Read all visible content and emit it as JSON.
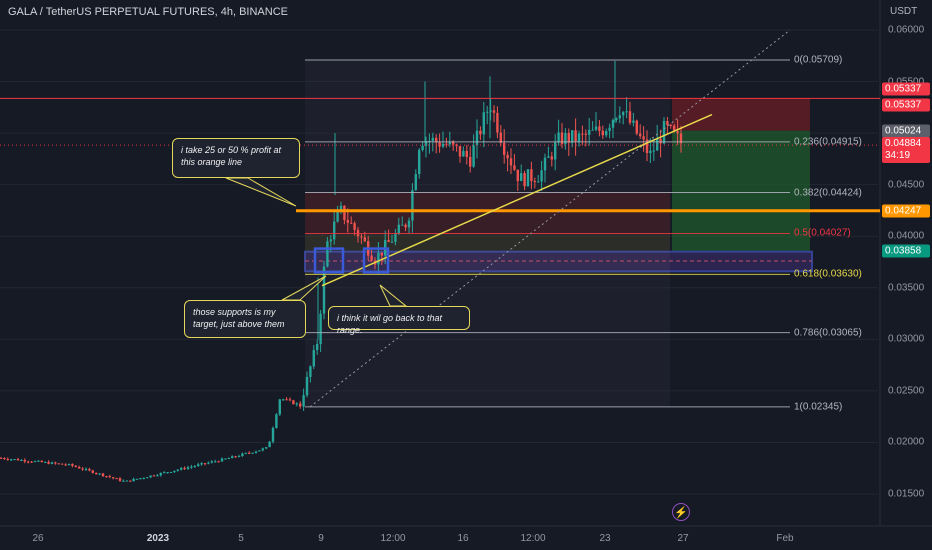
{
  "header": {
    "title": "GALA / TetherUS PERPETUAL FUTURES, 4h, BINANCE",
    "currency": "USDT"
  },
  "colors": {
    "background": "#161a25",
    "up_candle": "#26a69a",
    "down_candle": "#ef5350",
    "orange_line": "#ff9800",
    "yellow_trend": "#e6d84a",
    "support_box": "#3a5bd9"
  },
  "price_axis": {
    "ticks": [
      "0.06000",
      "0.05500",
      "0.05000",
      "0.04500",
      "0.04000",
      "0.03500",
      "0.03000",
      "0.02500",
      "0.02000",
      "0.01500"
    ],
    "badges": [
      {
        "name": "badge-stop-top",
        "text": "0.05337",
        "color": "#f23645"
      },
      {
        "name": "badge-stop-bottom",
        "text": "0.05337",
        "color": "#f23645"
      },
      {
        "name": "badge-entry",
        "text": "0.05024",
        "color": "#5d606b"
      },
      {
        "name": "badge-last-price",
        "text": "0.04884",
        "sub": "34:19",
        "color": "#f23645"
      },
      {
        "name": "badge-orange-line",
        "text": "0.04247",
        "color": "#ff9800"
      },
      {
        "name": "badge-target",
        "text": "0.03858",
        "color": "#089981"
      }
    ]
  },
  "time_axis": {
    "ticks": [
      {
        "label": "26",
        "bold": false
      },
      {
        "label": "2023",
        "bold": true
      },
      {
        "label": "5",
        "bold": false
      },
      {
        "label": "9",
        "bold": false
      },
      {
        "label": "12:00",
        "bold": false
      },
      {
        "label": "16",
        "bold": false
      },
      {
        "label": "12:00",
        "bold": false
      },
      {
        "label": "23",
        "bold": false
      },
      {
        "label": "27",
        "bold": false
      },
      {
        "label": "Feb",
        "bold": false
      }
    ]
  },
  "fib_levels": [
    {
      "label": "0(0.05709)",
      "color": "#b2b5be"
    },
    {
      "label": "0.236(0.04915)",
      "color": "#b2b5be"
    },
    {
      "label": "0.382(0.04424)",
      "color": "#b2b5be"
    },
    {
      "label": "0.5(0.04027)",
      "color": "#f23645"
    },
    {
      "label": "0.618(0.03630)",
      "color": "#e6d84a"
    },
    {
      "label": "0.786(0.03065)",
      "color": "#b2b5be"
    },
    {
      "label": "1(0.02345)",
      "color": "#b2b5be"
    }
  ],
  "annotations": {
    "note_profit": "i take 25 or 50 % profit at this orange line",
    "note_supports": "those supports is my target, just above them",
    "note_range": "i think it wil go back to that range."
  },
  "chart_data": {
    "type": "candlestick",
    "symbol": "GALA / TetherUS PERPETUAL FUTURES",
    "interval": "4h",
    "exchange": "BINANCE",
    "ylim": [
      0.013,
      0.0625
    ],
    "y_ticks": [
      0.06,
      0.055,
      0.05,
      0.045,
      0.04,
      0.035,
      0.03,
      0.025,
      0.02,
      0.015
    ],
    "x_ticks": [
      "26",
      "2023",
      "5",
      "9",
      "12:00",
      "16",
      "12:00",
      "23",
      "27",
      "Feb"
    ],
    "key_levels": {
      "fib_0": 0.05709,
      "fib_0_236": 0.04915,
      "fib_0_382": 0.04424,
      "fib_0_5": 0.04027,
      "fib_0_618": 0.0363,
      "fib_0_786": 0.03065,
      "fib_1": 0.02345,
      "stop": 0.05337,
      "entry": 0.05024,
      "last_price": 0.04884,
      "orange_line": 0.04247,
      "target": 0.03858
    },
    "approx_close_path": [
      [
        "26",
        0.0185
      ],
      [
        "2023",
        0.0165
      ],
      [
        "5",
        0.019
      ],
      [
        "9",
        0.038
      ],
      [
        "12:00",
        0.039
      ],
      [
        "16",
        0.05
      ],
      [
        "12:00",
        0.045
      ],
      [
        "23",
        0.052
      ],
      [
        "27",
        0.0488
      ]
    ]
  }
}
